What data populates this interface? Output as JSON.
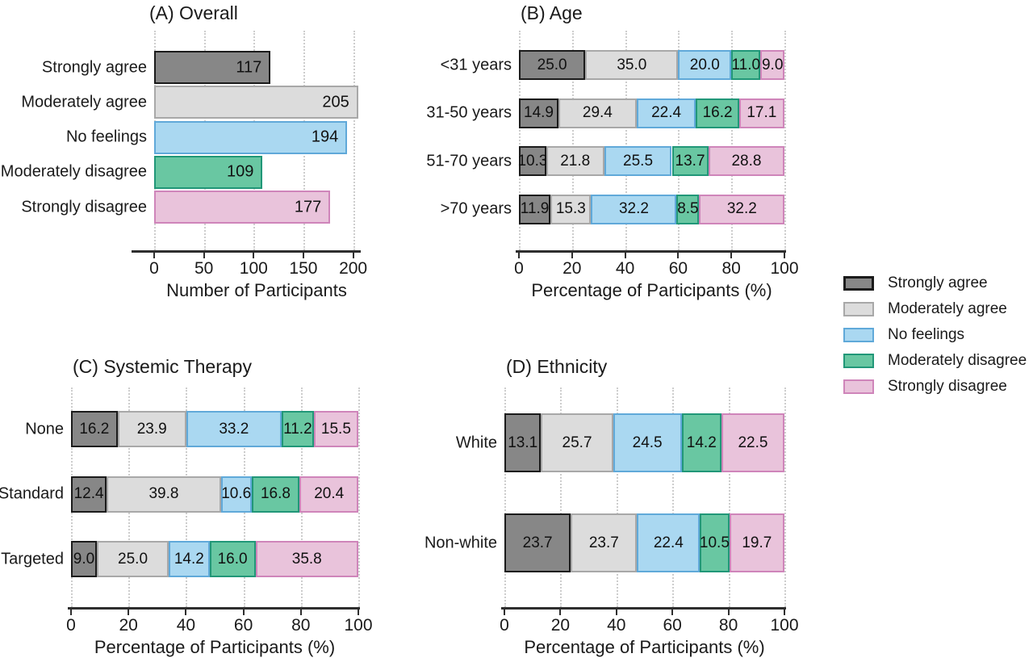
{
  "legend": {
    "items": [
      {
        "label": "Strongly agree",
        "fill": "#878787",
        "border": "#1b1b1b"
      },
      {
        "label": "Moderately agree",
        "fill": "#DCDCDC",
        "border": "#A8A8A8"
      },
      {
        "label": "No feelings",
        "fill": "#AAD8F1",
        "border": "#60A9D9"
      },
      {
        "label": "Moderately disagree",
        "fill": "#69C7A2",
        "border": "#219778"
      },
      {
        "label": "Strongly disagree",
        "fill": "#E9C3DB",
        "border": "#CF85BA"
      }
    ]
  },
  "chart_data": [
    {
      "id": "A",
      "type": "bar",
      "title": "(A) Overall",
      "xlabel": "Number of Participants",
      "xlim": [
        0,
        206
      ],
      "xticks": [
        0,
        50,
        100,
        150,
        200
      ],
      "grid": true,
      "legend_position": "right-outside",
      "categories": [
        "Strongly agree",
        "Moderately agree",
        "No feelings",
        "Moderately disagree",
        "Strongly disagree"
      ],
      "values": [
        117,
        205,
        194,
        109,
        177
      ],
      "value_decimals": 0
    },
    {
      "id": "B",
      "type": "stacked-bar",
      "title": "(B) Age",
      "xlabel": "Percentage of Participants (%)",
      "xlim": [
        0,
        100
      ],
      "xticks": [
        0,
        20,
        40,
        60,
        80,
        100
      ],
      "grid": true,
      "categories": [
        "<31 years",
        "31-50 years",
        "51-70 years",
        ">70 years"
      ],
      "series": [
        {
          "name": "Strongly agree",
          "values": [
            25.0,
            14.9,
            10.3,
            11.9
          ]
        },
        {
          "name": "Moderately agree",
          "values": [
            35.0,
            29.4,
            21.8,
            15.3
          ]
        },
        {
          "name": "No feelings",
          "values": [
            20.0,
            22.4,
            25.5,
            32.2
          ]
        },
        {
          "name": "Moderately disagree",
          "values": [
            11.0,
            16.2,
            13.7,
            8.5
          ]
        },
        {
          "name": "Strongly disagree",
          "values": [
            9.0,
            17.1,
            28.8,
            32.2
          ]
        }
      ],
      "value_decimals": 1
    },
    {
      "id": "C",
      "type": "stacked-bar",
      "title": "(C) Systemic Therapy",
      "xlabel": "Percentage of Participants (%)",
      "xlim": [
        0,
        100
      ],
      "xticks": [
        0,
        20,
        40,
        60,
        80,
        100
      ],
      "grid": true,
      "categories": [
        "None",
        "Standard",
        "Targeted"
      ],
      "series": [
        {
          "name": "Strongly agree",
          "values": [
            16.2,
            12.4,
            9.0
          ]
        },
        {
          "name": "Moderately agree",
          "values": [
            23.9,
            39.8,
            25.0
          ]
        },
        {
          "name": "No feelings",
          "values": [
            33.2,
            10.6,
            14.2
          ]
        },
        {
          "name": "Moderately disagree",
          "values": [
            11.2,
            16.8,
            16.0
          ]
        },
        {
          "name": "Strongly disagree",
          "values": [
            15.5,
            20.4,
            35.8
          ]
        }
      ],
      "value_decimals": 1
    },
    {
      "id": "D",
      "type": "stacked-bar",
      "title": "(D) Ethnicity",
      "xlabel": "Percentage of Participants (%)",
      "xlim": [
        0,
        100
      ],
      "xticks": [
        0,
        20,
        40,
        60,
        80,
        100
      ],
      "grid": true,
      "categories": [
        "White",
        "Non-white"
      ],
      "series": [
        {
          "name": "Strongly agree",
          "values": [
            13.1,
            23.7
          ]
        },
        {
          "name": "Moderately agree",
          "values": [
            25.7,
            23.7
          ]
        },
        {
          "name": "No feelings",
          "values": [
            24.5,
            22.4
          ]
        },
        {
          "name": "Moderately disagree",
          "values": [
            14.2,
            10.5
          ]
        },
        {
          "name": "Strongly disagree",
          "values": [
            22.5,
            19.7
          ]
        }
      ],
      "value_decimals": 1
    }
  ]
}
